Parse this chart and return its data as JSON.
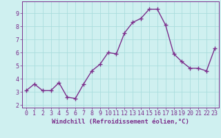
{
  "x": [
    0,
    1,
    2,
    3,
    4,
    5,
    6,
    7,
    8,
    9,
    10,
    11,
    12,
    13,
    14,
    15,
    16,
    17,
    18,
    19,
    20,
    21,
    22,
    23
  ],
  "y": [
    3.1,
    3.6,
    3.1,
    3.1,
    3.7,
    2.6,
    2.5,
    3.6,
    4.6,
    5.1,
    6.0,
    5.9,
    7.5,
    8.3,
    8.6,
    9.3,
    9.3,
    8.1,
    5.9,
    5.3,
    4.8,
    4.8,
    4.6,
    6.3
  ],
  "line_color": "#7b2d8b",
  "marker": "D",
  "marker_size": 2.5,
  "bg_color": "#cff0f0",
  "grid_color": "#aadddd",
  "xlabel": "Windchill (Refroidissement éolien,°C)",
  "xlim": [
    -0.5,
    23.5
  ],
  "ylim": [
    1.8,
    9.9
  ],
  "yticks": [
    2,
    3,
    4,
    5,
    6,
    7,
    8,
    9
  ],
  "xticks": [
    0,
    1,
    2,
    3,
    4,
    5,
    6,
    7,
    8,
    9,
    10,
    11,
    12,
    13,
    14,
    15,
    16,
    17,
    18,
    19,
    20,
    21,
    22,
    23
  ],
  "tick_color": "#7b2d8b",
  "axis_label_fontsize": 6.5,
  "tick_fontsize": 6.0,
  "line_width": 1.0
}
